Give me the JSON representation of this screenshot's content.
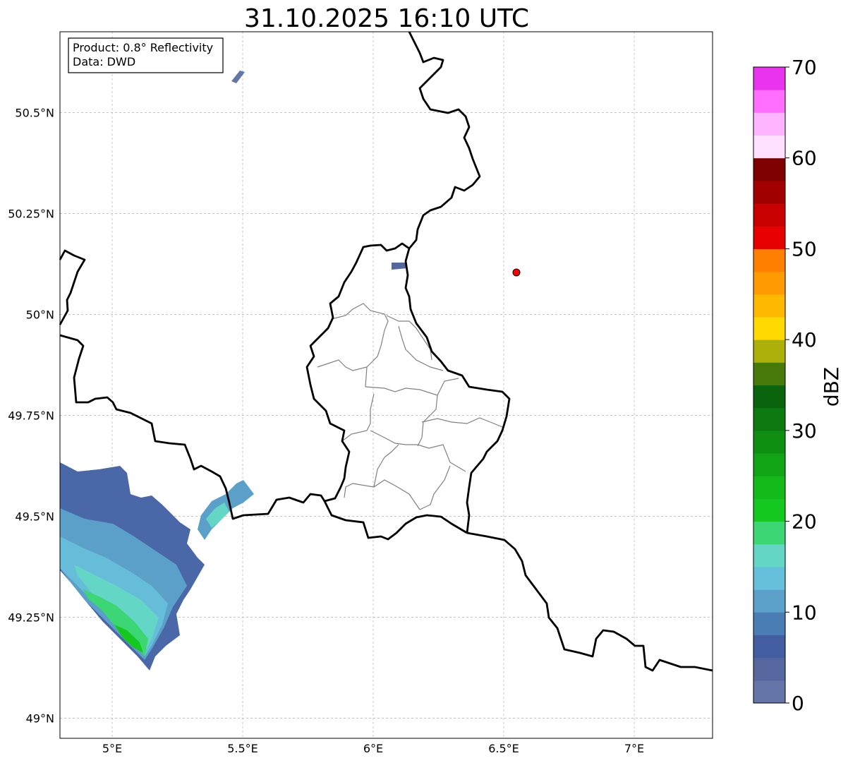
{
  "title": "31.10.2025 16:10 UTC",
  "info_box": {
    "product": "Product: 0.8° Reflectivity",
    "data": "Data: DWD"
  },
  "axes": {
    "lon_ticks": [
      {
        "value": 5.0,
        "label": "5°E"
      },
      {
        "value": 5.5,
        "label": "5.5°E"
      },
      {
        "value": 6.0,
        "label": "6°E"
      },
      {
        "value": 6.5,
        "label": "6.5°E"
      },
      {
        "value": 7.0,
        "label": "7°E"
      }
    ],
    "lat_ticks": [
      {
        "value": 49.0,
        "label": "49°N"
      },
      {
        "value": 49.25,
        "label": "49.25°N"
      },
      {
        "value": 49.5,
        "label": "49.5°N"
      },
      {
        "value": 49.75,
        "label": "49.75°N"
      },
      {
        "value": 50.0,
        "label": "50°N"
      },
      {
        "value": 50.25,
        "label": "50.25°N"
      },
      {
        "value": 50.5,
        "label": "50.5°N"
      }
    ],
    "lon_range": [
      4.8,
      7.3
    ],
    "lat_range": [
      48.95,
      50.7
    ],
    "grid": true
  },
  "marker": {
    "name": "radar-site",
    "lon": 6.55,
    "lat": 50.11,
    "color": "#ff0000"
  },
  "colorbar": {
    "label": "dBZ",
    "min": 0,
    "max": 70,
    "step": 2.5,
    "ticks": [
      {
        "value": 0,
        "label": "0"
      },
      {
        "value": 10,
        "label": "10"
      },
      {
        "value": 20,
        "label": "20"
      },
      {
        "value": 30,
        "label": "30"
      },
      {
        "value": 40,
        "label": "40"
      },
      {
        "value": 50,
        "label": "50"
      },
      {
        "value": 60,
        "label": "60"
      },
      {
        "value": 70,
        "label": "70"
      }
    ],
    "colors": [
      "#6675a8",
      "#55679e",
      "#435ea0",
      "#4a7db3",
      "#5ba0c9",
      "#66c0dc",
      "#64d6c6",
      "#3dd674",
      "#15c820",
      "#13ba1a",
      "#11a515",
      "#0f8f12",
      "#0c7a10",
      "#0a640d",
      "#477a0a",
      "#adb008",
      "#ffd900",
      "#ffb900",
      "#ff9b00",
      "#ff7f00",
      "#e60000",
      "#c80000",
      "#a00000",
      "#7f0000",
      "#ffe1ff",
      "#ffb4ff",
      "#ff6eff",
      "#e933ee"
    ]
  }
}
